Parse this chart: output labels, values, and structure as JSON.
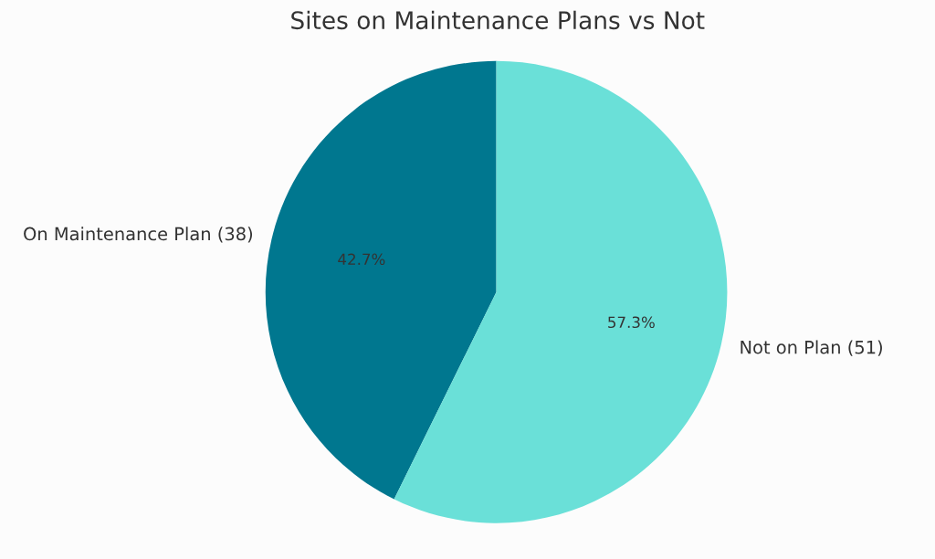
{
  "chart_data": {
    "type": "pie",
    "title": "Sites on Maintenance Plans vs Not",
    "categories": [
      "On Maintenance Plan (38)",
      "Not on Plan (51)"
    ],
    "values": [
      42.7,
      57.3
    ],
    "colors": [
      "#00778f",
      "#6ae0d8"
    ],
    "value_labels": [
      "42.7%",
      "57.3%"
    ],
    "legend": false
  }
}
